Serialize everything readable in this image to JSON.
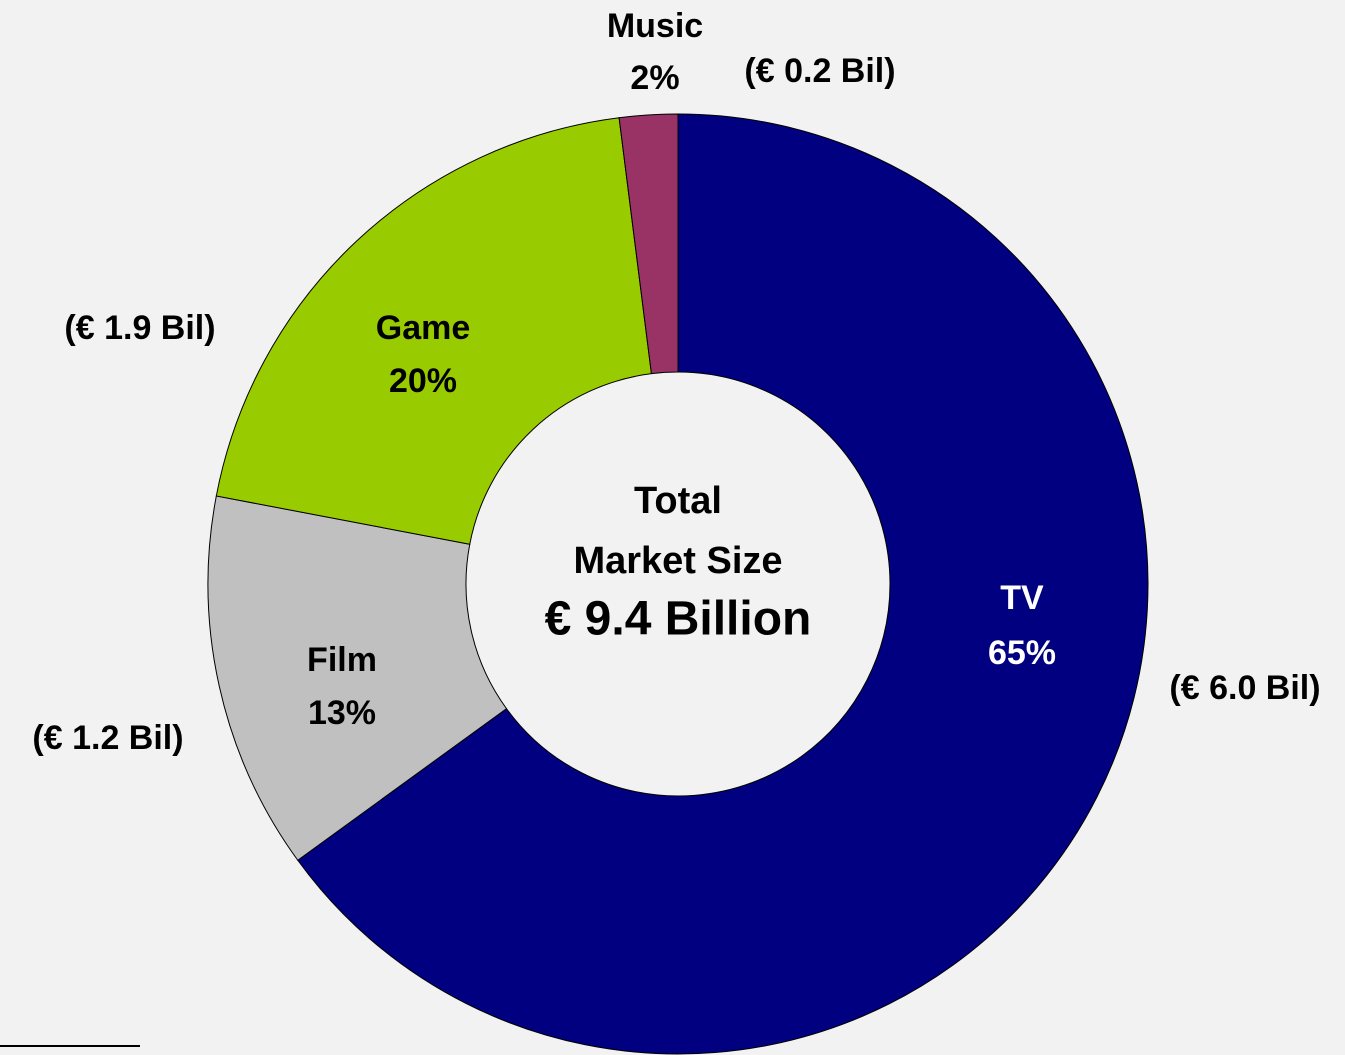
{
  "chart_data": {
    "type": "donut",
    "categories": [
      "TV",
      "Film",
      "Game",
      "Music"
    ],
    "values": [
      65,
      13,
      20,
      2
    ],
    "value_labels": [
      "65%",
      "13%",
      "20%",
      "2%"
    ],
    "amount_labels": [
      "(€ 6.0 Bil)",
      "(€ 1.2 Bil)",
      "(€ 1.9 Bil)",
      "(€ 0.2 Bil)"
    ],
    "colors": [
      "#000080",
      "#c0c0c0",
      "#99cc00",
      "#993366"
    ],
    "center_text": [
      "Total",
      "Market Size",
      "€ 9.4 Billion"
    ]
  }
}
